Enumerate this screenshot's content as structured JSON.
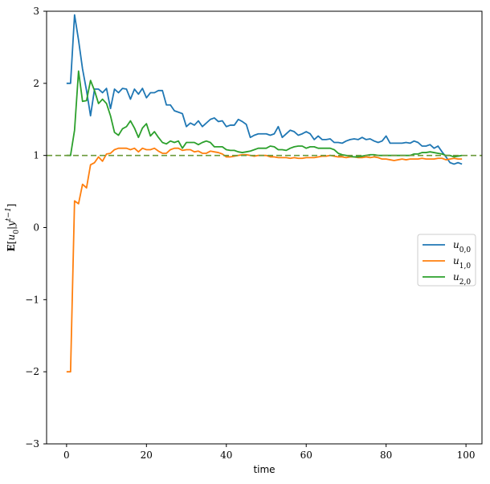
{
  "chart_data": {
    "type": "line",
    "xlabel": "time",
    "ylabel": "E[u0|y^{t-1}]",
    "xlim": [
      -5,
      104
    ],
    "ylim": [
      -3,
      3
    ],
    "xticks": [
      0,
      20,
      40,
      60,
      80,
      100
    ],
    "yticks": [
      -3,
      -2,
      -1,
      0,
      1,
      2,
      3
    ],
    "xtick_labels": [
      "0",
      "20",
      "40",
      "60",
      "80",
      "100"
    ],
    "ytick_labels": [
      "−3",
      "−2",
      "−1",
      "0",
      "1",
      "2",
      "3"
    ],
    "reference_line": {
      "y": 1.0,
      "style": "dashed",
      "color": "#6a9a3a"
    },
    "legend": {
      "placement": "center-right"
    },
    "grid": false,
    "series": [
      {
        "name": "u0,0",
        "label_main": "u",
        "label_sub": "0,0",
        "color": "#1f77b4",
        "x": [
          0,
          1,
          2,
          3,
          4,
          5,
          6,
          7,
          8,
          9,
          10,
          11,
          12,
          13,
          14,
          15,
          16,
          17,
          18,
          19,
          20,
          21,
          22,
          23,
          24,
          25,
          26,
          27,
          28,
          29,
          30,
          31,
          32,
          33,
          34,
          35,
          36,
          37,
          38,
          39,
          40,
          41,
          42,
          43,
          44,
          45,
          46,
          47,
          48,
          49,
          50,
          51,
          52,
          53,
          54,
          55,
          56,
          57,
          58,
          59,
          60,
          61,
          62,
          63,
          64,
          65,
          66,
          67,
          68,
          69,
          70,
          71,
          72,
          73,
          74,
          75,
          76,
          77,
          78,
          79,
          80,
          81,
          82,
          83,
          84,
          85,
          86,
          87,
          88,
          89,
          90,
          91,
          92,
          93,
          94,
          95,
          96,
          97,
          98,
          99
        ],
        "y": [
          2.0,
          2.0,
          2.95,
          2.6,
          2.2,
          1.9,
          1.55,
          1.92,
          1.92,
          1.87,
          1.93,
          1.65,
          1.92,
          1.87,
          1.93,
          1.92,
          1.78,
          1.92,
          1.85,
          1.93,
          1.8,
          1.87,
          1.87,
          1.9,
          1.9,
          1.7,
          1.7,
          1.62,
          1.6,
          1.58,
          1.4,
          1.45,
          1.42,
          1.48,
          1.4,
          1.45,
          1.5,
          1.52,
          1.47,
          1.48,
          1.4,
          1.42,
          1.42,
          1.5,
          1.47,
          1.43,
          1.25,
          1.28,
          1.3,
          1.3,
          1.3,
          1.28,
          1.3,
          1.4,
          1.25,
          1.3,
          1.35,
          1.33,
          1.28,
          1.3,
          1.33,
          1.3,
          1.22,
          1.27,
          1.22,
          1.22,
          1.23,
          1.18,
          1.18,
          1.17,
          1.2,
          1.22,
          1.23,
          1.22,
          1.25,
          1.22,
          1.23,
          1.2,
          1.18,
          1.2,
          1.27,
          1.17,
          1.17,
          1.17,
          1.17,
          1.18,
          1.17,
          1.2,
          1.18,
          1.13,
          1.13,
          1.15,
          1.1,
          1.13,
          1.05,
          0.98,
          0.9,
          0.88,
          0.9,
          0.88
        ]
      },
      {
        "name": "u1,0",
        "label_main": "u",
        "label_sub": "1,0",
        "color": "#ff7f0e",
        "x": [
          0,
          1,
          2,
          3,
          4,
          5,
          6,
          7,
          8,
          9,
          10,
          11,
          12,
          13,
          14,
          15,
          16,
          17,
          18,
          19,
          20,
          21,
          22,
          23,
          24,
          25,
          26,
          27,
          28,
          29,
          30,
          31,
          32,
          33,
          34,
          35,
          36,
          37,
          38,
          39,
          40,
          41,
          42,
          43,
          44,
          45,
          46,
          47,
          48,
          49,
          50,
          51,
          52,
          53,
          54,
          55,
          56,
          57,
          58,
          59,
          60,
          61,
          62,
          63,
          64,
          65,
          66,
          67,
          68,
          69,
          70,
          71,
          72,
          73,
          74,
          75,
          76,
          77,
          78,
          79,
          80,
          81,
          82,
          83,
          84,
          85,
          86,
          87,
          88,
          89,
          90,
          91,
          92,
          93,
          94,
          95,
          96,
          97,
          98,
          99
        ],
        "y": [
          -2.0,
          -2.0,
          0.37,
          0.33,
          0.6,
          0.55,
          0.87,
          0.9,
          0.98,
          0.92,
          1.02,
          1.03,
          1.08,
          1.1,
          1.1,
          1.1,
          1.08,
          1.1,
          1.05,
          1.1,
          1.08,
          1.08,
          1.1,
          1.06,
          1.03,
          1.03,
          1.08,
          1.1,
          1.1,
          1.07,
          1.08,
          1.08,
          1.05,
          1.06,
          1.03,
          1.03,
          1.06,
          1.05,
          1.04,
          1.02,
          0.98,
          0.98,
          0.99,
          1.0,
          1.01,
          1.01,
          1.0,
          0.99,
          1.0,
          1.0,
          1.0,
          0.98,
          0.98,
          0.97,
          0.97,
          0.97,
          0.96,
          0.97,
          0.96,
          0.96,
          0.97,
          0.97,
          0.97,
          0.98,
          0.99,
          0.99,
          1.0,
          0.99,
          0.98,
          0.98,
          0.97,
          0.98,
          0.98,
          0.97,
          0.97,
          0.98,
          0.97,
          0.98,
          0.97,
          0.95,
          0.95,
          0.94,
          0.93,
          0.94,
          0.95,
          0.94,
          0.95,
          0.95,
          0.95,
          0.96,
          0.95,
          0.95,
          0.95,
          0.96,
          0.96,
          0.94,
          0.95,
          0.96,
          0.95,
          0.95
        ]
      },
      {
        "name": "u2,0",
        "label_main": "u",
        "label_sub": "2,0",
        "color": "#2ca02c",
        "x": [
          0,
          1,
          2,
          3,
          4,
          5,
          6,
          7,
          8,
          9,
          10,
          11,
          12,
          13,
          14,
          15,
          16,
          17,
          18,
          19,
          20,
          21,
          22,
          23,
          24,
          25,
          26,
          27,
          28,
          29,
          30,
          31,
          32,
          33,
          34,
          35,
          36,
          37,
          38,
          39,
          40,
          41,
          42,
          43,
          44,
          45,
          46,
          47,
          48,
          49,
          50,
          51,
          52,
          53,
          54,
          55,
          56,
          57,
          58,
          59,
          60,
          61,
          62,
          63,
          64,
          65,
          66,
          67,
          68,
          69,
          70,
          71,
          72,
          73,
          74,
          75,
          76,
          77,
          78,
          79,
          80,
          81,
          82,
          83,
          84,
          85,
          86,
          87,
          88,
          89,
          90,
          91,
          92,
          93,
          94,
          95,
          96,
          97,
          98,
          99
        ],
        "y": [
          1.0,
          1.0,
          1.35,
          2.17,
          1.75,
          1.76,
          2.04,
          1.9,
          1.72,
          1.78,
          1.72,
          1.55,
          1.32,
          1.28,
          1.37,
          1.4,
          1.48,
          1.38,
          1.25,
          1.38,
          1.44,
          1.27,
          1.33,
          1.25,
          1.18,
          1.16,
          1.2,
          1.18,
          1.2,
          1.1,
          1.18,
          1.18,
          1.18,
          1.15,
          1.18,
          1.2,
          1.18,
          1.12,
          1.12,
          1.12,
          1.08,
          1.07,
          1.07,
          1.05,
          1.04,
          1.05,
          1.06,
          1.08,
          1.1,
          1.1,
          1.1,
          1.13,
          1.12,
          1.08,
          1.08,
          1.07,
          1.1,
          1.12,
          1.13,
          1.13,
          1.1,
          1.12,
          1.12,
          1.1,
          1.1,
          1.1,
          1.1,
          1.08,
          1.03,
          1.01,
          1.0,
          0.99,
          0.98,
          0.98,
          0.99,
          1.0,
          1.01,
          1.01,
          1.0,
          1.0,
          1.0,
          1.0,
          1.0,
          1.0,
          1.0,
          1.0,
          1.0,
          1.02,
          1.02,
          1.04,
          1.04,
          1.05,
          1.04,
          1.03,
          1.02,
          1.0,
          1.0,
          0.98,
          0.99,
          1.0
        ]
      }
    ]
  }
}
